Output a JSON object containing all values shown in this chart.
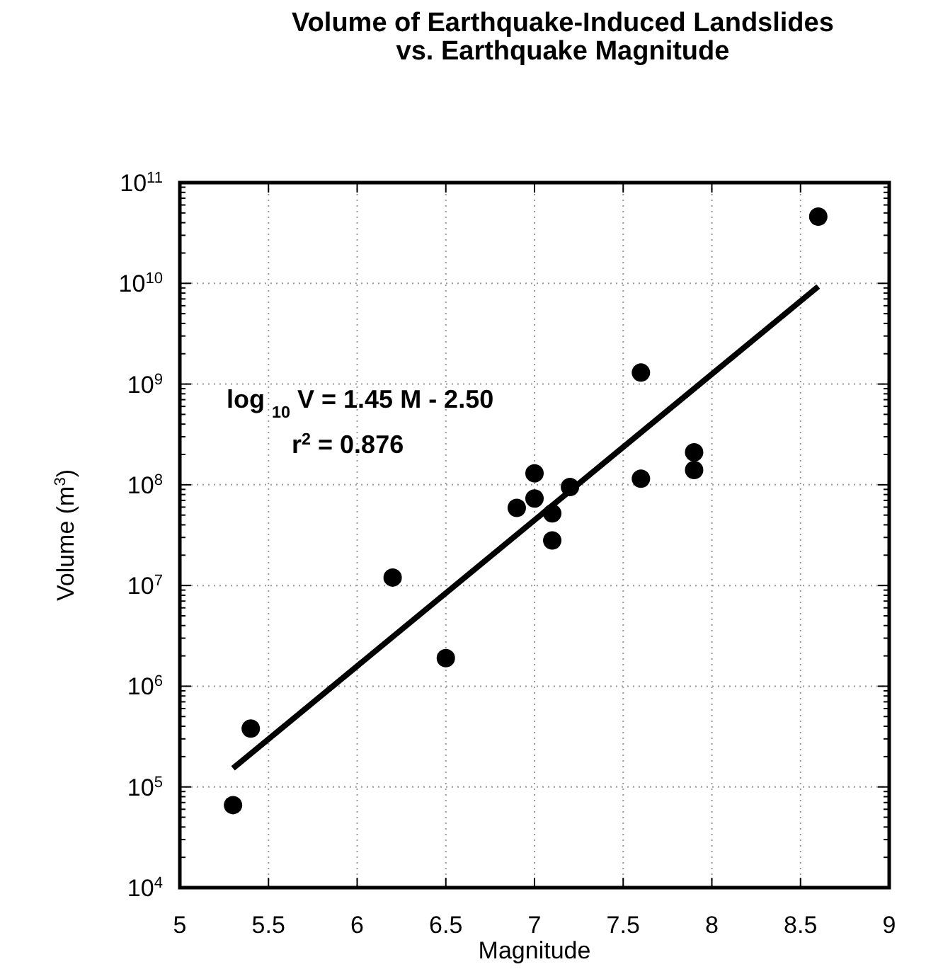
{
  "chart_data": {
    "type": "scatter",
    "title": "Volume of Earthquake-Induced Landslides\nvs. Earthquake Magnitude",
    "xlabel": "Magnitude",
    "ylabel": "Volume (m$^{3}$)",
    "log": "y",
    "grid": true,
    "marker": "circle",
    "xlim": [
      5,
      9
    ],
    "xticks": [
      5,
      5.5,
      6,
      6.5,
      7,
      7.5,
      8,
      8.5,
      9
    ],
    "ylim": [
      10000,
      100000000000
    ],
    "yticks": [
      {
        "value": 10000,
        "label": "10$^{4}$"
      },
      {
        "value": 100000,
        "label": "10$^{5}$"
      },
      {
        "value": 1000000,
        "label": "10$^{6}$"
      },
      {
        "value": 10000000,
        "label": "10$^{7}$"
      },
      {
        "value": 100000000,
        "label": "10$^{8}$"
      },
      {
        "value": 1000000000,
        "label": "10$^{9}$"
      },
      {
        "value": 10000000000,
        "label": "10$^{10}$"
      },
      {
        "value": 100000000000,
        "label": "10$^{11}$"
      }
    ],
    "series": [
      {
        "color": "#000000",
        "x": [
          5.3,
          5.4,
          6.2,
          6.5,
          6.9,
          7.0,
          7.0,
          7.1,
          7.1,
          7.2,
          7.6,
          7.6,
          7.9,
          7.9,
          8.6
        ],
        "values": [
          66000,
          380000,
          12000000,
          1900000,
          59000000,
          130000000,
          73000000,
          52000000,
          28000000,
          95000000,
          1300000000,
          115000000,
          210000000,
          140000000,
          46000000000
        ]
      },
      {
        "type": "line",
        "color": "#000000",
        "marker": "none",
        "x": [
          5.3,
          8.6
        ],
        "values": [
          153000,
          9300000000
        ]
      }
    ],
    "annotations": [
      "log $_{10}$ V = 1.45 M - 2.50",
      "r$^{2}$ = 0.876"
    ]
  }
}
